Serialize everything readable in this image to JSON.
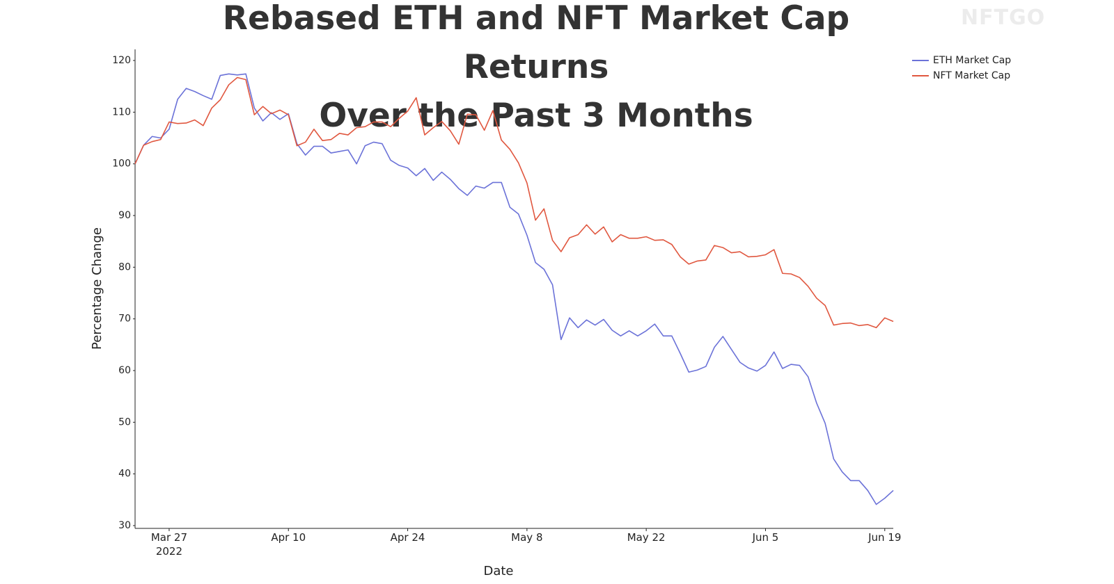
{
  "chart_data": {
    "type": "line",
    "title": "Rebased ETH and NFT Market Cap Returns\nOver the Past 3 Months",
    "watermark": "NFTGO",
    "x_label": "Date",
    "y_label": "Percentage Change",
    "x": [
      "2022-03-23",
      "2022-03-24",
      "2022-03-25",
      "2022-03-26",
      "2022-03-27",
      "2022-03-28",
      "2022-03-29",
      "2022-03-30",
      "2022-03-31",
      "2022-04-01",
      "2022-04-02",
      "2022-04-03",
      "2022-04-04",
      "2022-04-05",
      "2022-04-06",
      "2022-04-07",
      "2022-04-08",
      "2022-04-09",
      "2022-04-10",
      "2022-04-11",
      "2022-04-12",
      "2022-04-13",
      "2022-04-14",
      "2022-04-15",
      "2022-04-16",
      "2022-04-17",
      "2022-04-18",
      "2022-04-19",
      "2022-04-20",
      "2022-04-21",
      "2022-04-22",
      "2022-04-23",
      "2022-04-24",
      "2022-04-25",
      "2022-04-26",
      "2022-04-27",
      "2022-04-28",
      "2022-04-29",
      "2022-04-30",
      "2022-05-01",
      "2022-05-02",
      "2022-05-03",
      "2022-05-04",
      "2022-05-05",
      "2022-05-06",
      "2022-05-07",
      "2022-05-08",
      "2022-05-09",
      "2022-05-10",
      "2022-05-11",
      "2022-05-12",
      "2022-05-13",
      "2022-05-14",
      "2022-05-15",
      "2022-05-16",
      "2022-05-17",
      "2022-05-18",
      "2022-05-19",
      "2022-05-20",
      "2022-05-21",
      "2022-05-22",
      "2022-05-23",
      "2022-05-24",
      "2022-05-25",
      "2022-05-26",
      "2022-05-27",
      "2022-05-28",
      "2022-05-29",
      "2022-05-30",
      "2022-05-31",
      "2022-06-01",
      "2022-06-02",
      "2022-06-03",
      "2022-06-04",
      "2022-06-05",
      "2022-06-06",
      "2022-06-07",
      "2022-06-08",
      "2022-06-09",
      "2022-06-10",
      "2022-06-11",
      "2022-06-12",
      "2022-06-13",
      "2022-06-14",
      "2022-06-15",
      "2022-06-16",
      "2022-06-17",
      "2022-06-18",
      "2022-06-19",
      "2022-06-20"
    ],
    "series": [
      {
        "name": "ETH Market Cap",
        "color": "#6b72d8",
        "values": [
          100,
          103.6,
          105.3,
          105,
          106.7,
          112.5,
          114.6,
          114,
          113.2,
          112.5,
          117.1,
          117.4,
          117.2,
          117.4,
          110.8,
          108.3,
          109.9,
          108.6,
          109.7,
          103.9,
          101.7,
          103.4,
          103.4,
          102.1,
          102.4,
          102.7,
          100,
          103.5,
          104.2,
          103.9,
          100.7,
          99.7,
          99.2,
          97.7,
          99.1,
          96.8,
          98.4,
          97,
          95.2,
          93.9,
          95.7,
          95.3,
          96.4,
          96.4,
          91.6,
          90.3,
          86.2,
          80.9,
          79.6,
          76.6,
          66,
          70.2,
          68.3,
          69.8,
          68.8,
          69.9,
          67.8,
          66.7,
          67.7,
          66.7,
          67.7,
          69,
          66.7,
          66.7,
          63.3,
          59.7,
          60.1,
          60.8,
          64.5,
          66.6,
          64.1,
          61.6,
          60.5,
          59.9,
          61,
          63.6,
          60.4,
          61.2,
          61,
          58.8,
          53.7,
          49.8,
          42.9,
          40.4,
          38.7,
          38.7,
          36.8,
          34.1,
          35.3,
          36.8
        ]
      },
      {
        "name": "NFT Market Cap",
        "color": "#e0573f",
        "values": [
          100,
          103.6,
          104.3,
          104.7,
          108.1,
          107.8,
          107.9,
          108.5,
          107.4,
          110.8,
          112.4,
          115.3,
          116.7,
          116.3,
          109.5,
          111.1,
          109.7,
          110.4,
          109.5,
          103.5,
          104.2,
          106.7,
          104.5,
          104.7,
          105.9,
          105.6,
          107,
          107.2,
          108.1,
          108.1,
          107.2,
          108.8,
          110.2,
          112.8,
          105.6,
          107,
          108.2,
          106.4,
          103.8,
          109.6,
          109.5,
          106.5,
          110.3,
          104.6,
          102.8,
          100.2,
          96.3,
          89.1,
          91.3,
          85.2,
          83,
          85.7,
          86.3,
          88.2,
          86.4,
          87.8,
          84.9,
          86.3,
          85.6,
          85.6,
          85.9,
          85.2,
          85.3,
          84.4,
          82,
          80.6,
          81.2,
          81.4,
          84.2,
          83.8,
          82.8,
          83,
          82,
          82.1,
          82.4,
          83.4,
          78.8,
          78.7,
          78,
          76.3,
          74,
          72.6,
          68.8,
          69.1,
          69.2,
          68.7,
          68.9,
          68.3,
          70.2,
          69.5
        ]
      }
    ],
    "xlim": [
      "2022-03-23",
      "2022-06-20"
    ],
    "xticks": [
      {
        "value": "2022-03-27",
        "label": "Mar 27\n2022"
      },
      {
        "value": "2022-04-10",
        "label": "Apr 10"
      },
      {
        "value": "2022-04-24",
        "label": "Apr 24"
      },
      {
        "value": "2022-05-08",
        "label": "May 8"
      },
      {
        "value": "2022-05-22",
        "label": "May 22"
      },
      {
        "value": "2022-06-05",
        "label": "Jun 5"
      },
      {
        "value": "2022-06-19",
        "label": "Jun 19"
      }
    ],
    "ylim": [
      30,
      120
    ],
    "yticks": [
      30,
      40,
      50,
      60,
      70,
      80,
      90,
      100,
      110,
      120
    ],
    "grid": false,
    "legend": "top-right"
  }
}
